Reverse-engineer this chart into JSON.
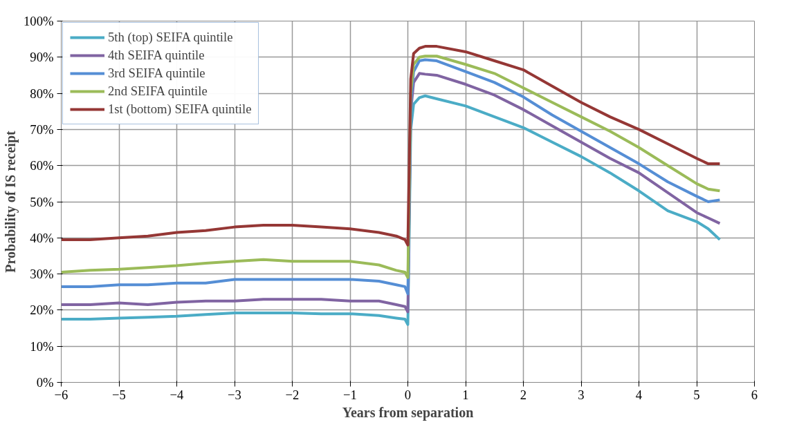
{
  "chart_data": {
    "type": "line",
    "xlabel": "Years from separation",
    "ylabel": "Probability of IS receipt",
    "x": [
      -6,
      -5.5,
      -5,
      -4.5,
      -4,
      -3.5,
      -3,
      -2.5,
      -2,
      -1.5,
      -1,
      -0.5,
      -0.2,
      -0.05,
      0,
      0.05,
      0.1,
      0.2,
      0.3,
      0.5,
      1,
      1.5,
      2,
      2.5,
      3,
      3.5,
      4,
      4.5,
      5,
      5.2,
      5.4
    ],
    "series": [
      {
        "name": "5th (top) SEIFA quintile",
        "color": "#4bacc6",
        "values": [
          17.5,
          17.5,
          17.8,
          18,
          18.3,
          18.8,
          19.2,
          19.2,
          19.2,
          19,
          19,
          18.5,
          17.8,
          17.5,
          16,
          70,
          77,
          78.8,
          79.3,
          78.5,
          76.5,
          73.5,
          70.5,
          66.5,
          62.5,
          58,
          53,
          47.5,
          44.5,
          42.5,
          39.5
        ]
      },
      {
        "name": "4th SEIFA quintile",
        "color": "#8064a2",
        "values": [
          21.5,
          21.5,
          22,
          21.5,
          22.2,
          22.5,
          22.5,
          23,
          23,
          23,
          22.5,
          22.5,
          21.5,
          21,
          19.5,
          75,
          83,
          85.5,
          85.3,
          85,
          82.5,
          79.5,
          75.5,
          71,
          66.5,
          62,
          58,
          52.5,
          47,
          45.5,
          44
        ]
      },
      {
        "name": "3rd SEIFA quintile",
        "color": "#558ed5",
        "values": [
          26.5,
          26.5,
          27,
          27,
          27.5,
          27.5,
          28.5,
          28.5,
          28.5,
          28.5,
          28.5,
          28,
          27,
          26.5,
          24.5,
          77,
          86,
          89,
          89.3,
          89,
          86,
          83,
          79,
          74,
          69.5,
          65,
          60.5,
          55.5,
          51.5,
          50,
          50.5
        ]
      },
      {
        "name": "2nd SEIFA quintile",
        "color": "#9bbb59",
        "values": [
          30.5,
          31,
          31.3,
          31.8,
          32.3,
          33,
          33.5,
          34,
          33.5,
          33.5,
          33.5,
          32.5,
          31,
          30.5,
          29,
          80,
          88,
          90,
          90.3,
          90.3,
          88,
          85.5,
          81.5,
          77.5,
          73.5,
          69.5,
          65,
          60,
          55,
          53.5,
          53
        ]
      },
      {
        "name": "1st (bottom) SEIFA quintile",
        "color": "#953735",
        "values": [
          39.5,
          39.5,
          40,
          40.5,
          41.5,
          42,
          43,
          43.5,
          43.5,
          43,
          42.5,
          41.5,
          40.5,
          39.5,
          38,
          84,
          91,
          92.5,
          93,
          93,
          91.5,
          89,
          86.5,
          82,
          77.5,
          73.5,
          70,
          66,
          62,
          60.5,
          60.5
        ]
      }
    ],
    "xlim": [
      -6,
      6
    ],
    "xticks": [
      -6,
      -5,
      -4,
      -3,
      -2,
      -1,
      0,
      1,
      2,
      3,
      4,
      5,
      6
    ],
    "ylim": [
      0,
      100
    ],
    "yticks": [
      {
        "value": 0,
        "label": "0%"
      },
      {
        "value": 10,
        "label": "10%"
      },
      {
        "value": 20,
        "label": "20%"
      },
      {
        "value": 30,
        "label": "30%"
      },
      {
        "value": 40,
        "label": "40%"
      },
      {
        "value": 50,
        "label": "50%"
      },
      {
        "value": 60,
        "label": "60%"
      },
      {
        "value": 70,
        "label": "70%"
      },
      {
        "value": 80,
        "label": "80%"
      },
      {
        "value": 90,
        "label": "90%"
      },
      {
        "value": 100,
        "label": "100%"
      }
    ],
    "grid": true,
    "legend": "top left",
    "marker": "none",
    "line_style": "solid"
  }
}
